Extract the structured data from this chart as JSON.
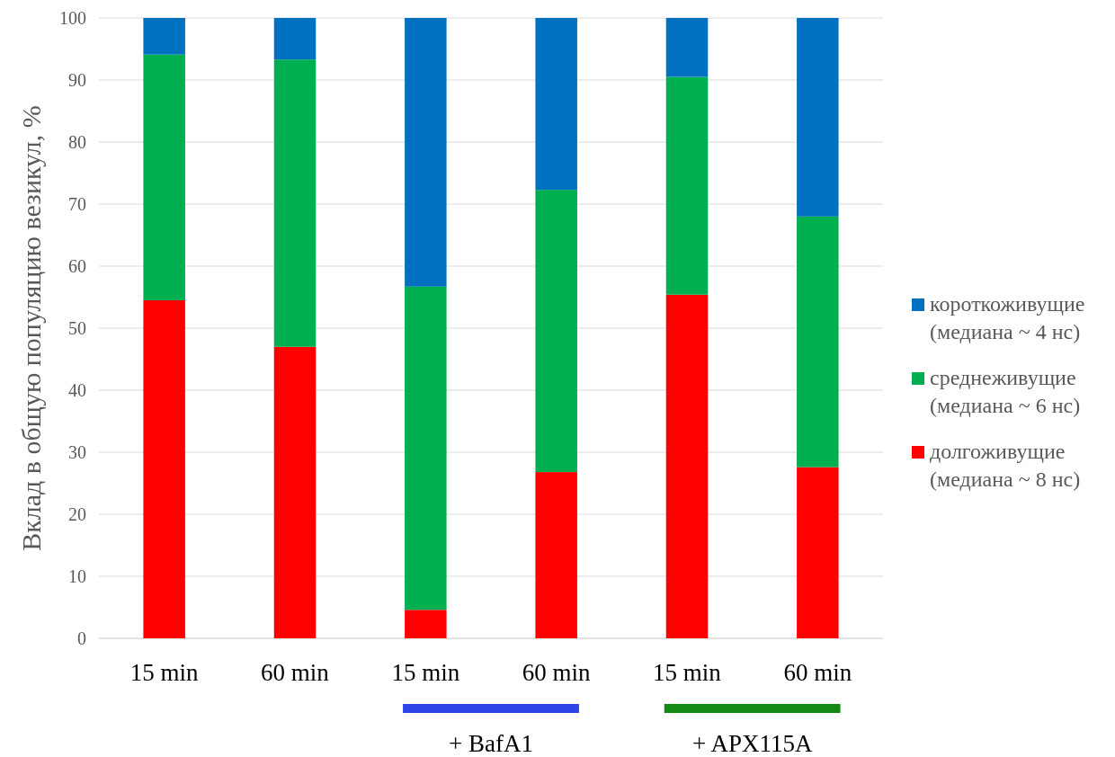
{
  "chart_data": {
    "type": "bar",
    "stacked": true,
    "ylabel": "Вклад в общую популяцию везикул, %",
    "categories": [
      "15 min",
      "60 min",
      "15 min",
      "60 min",
      "15 min",
      "60 min"
    ],
    "series": [
      {
        "name": "долгоживущие (медиана ~ 8 нс)",
        "color": "#ff0000",
        "values": [
          54.5,
          47.0,
          4.6,
          26.8,
          55.4,
          27.6
        ]
      },
      {
        "name": "среднеживущие (медиана ~ 6 нс)",
        "color": "#00b050",
        "values": [
          39.6,
          46.3,
          52.1,
          45.5,
          35.1,
          40.4
        ]
      },
      {
        "name": "короткоживущие (медиана ~ 4 нс)",
        "color": "#0070c0",
        "values": [
          5.9,
          6.7,
          43.3,
          27.7,
          9.5,
          32.0
        ]
      }
    ],
    "ylim": [
      0,
      100
    ],
    "yticks": [
      0,
      10,
      20,
      30,
      40,
      50,
      60,
      70,
      80,
      90,
      100
    ],
    "grid": "y",
    "legend": "right",
    "annotations": [
      "+ BafA1",
      "+ APX115A"
    ]
  }
}
